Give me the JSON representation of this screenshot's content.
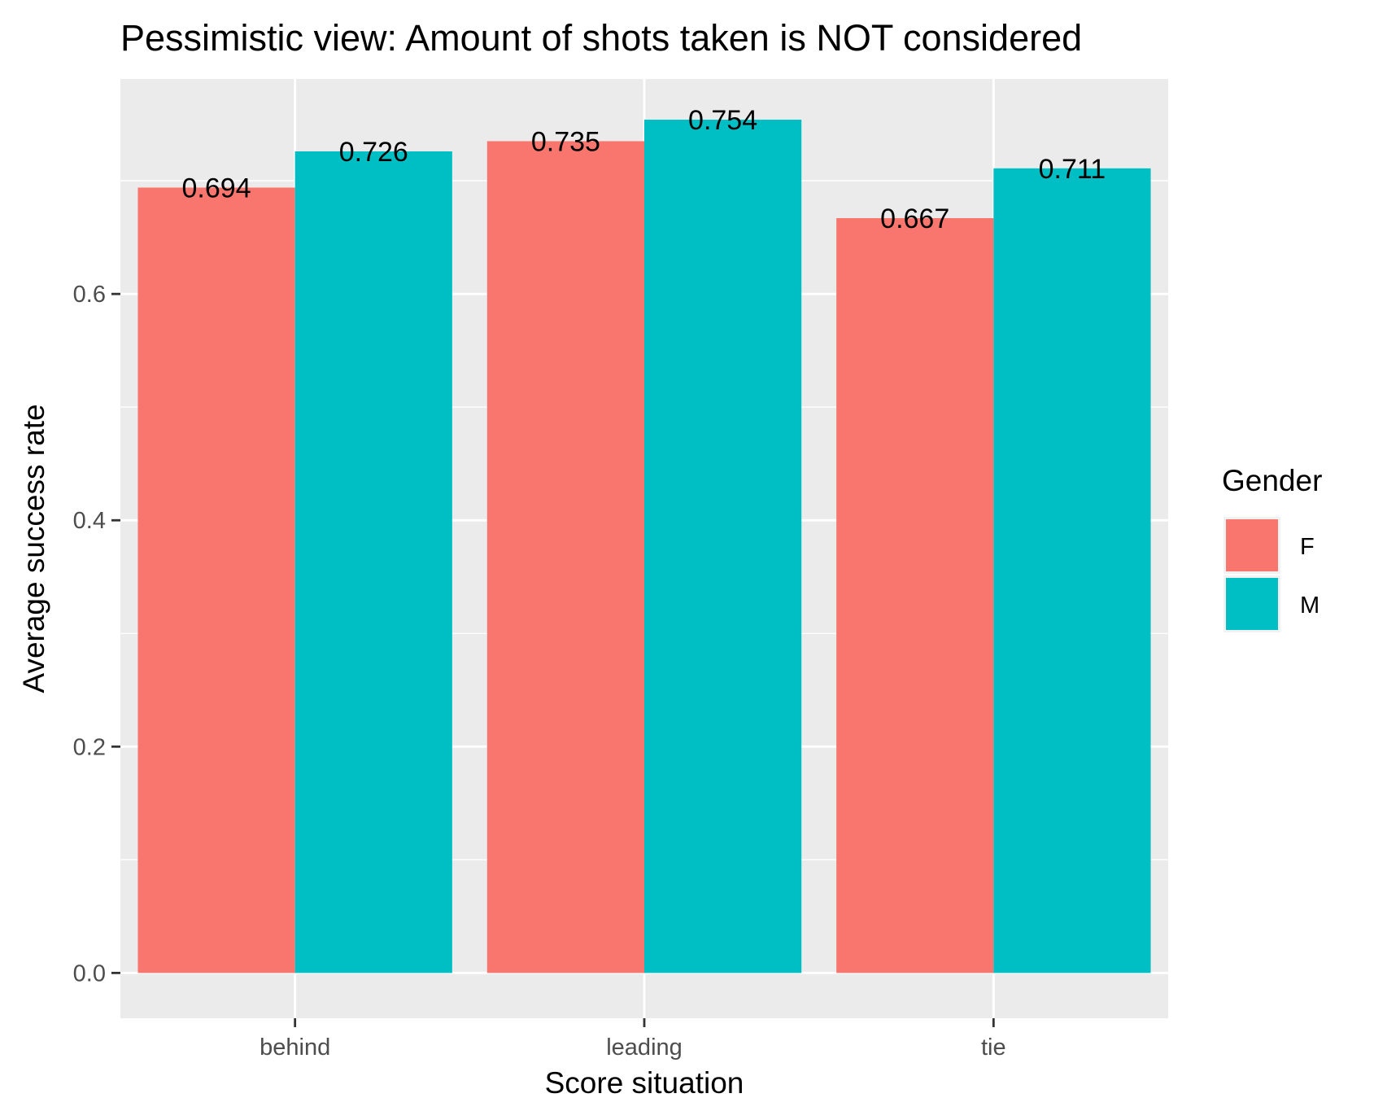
{
  "chart_data": {
    "type": "bar",
    "title": "Pessimistic view: Amount of shots taken is NOT considered",
    "xlabel": "Score situation",
    "ylabel": "Average success rate",
    "categories": [
      "behind",
      "leading",
      "tie"
    ],
    "series": [
      {
        "name": "F",
        "values": [
          0.694,
          0.735,
          0.667
        ],
        "labels": [
          "0.694",
          "0.735",
          "0.667"
        ],
        "color": "#F8766D"
      },
      {
        "name": "M",
        "values": [
          0.726,
          0.754,
          0.711
        ],
        "labels": [
          "0.726",
          "0.754",
          "0.711"
        ],
        "color": "#00BFC4"
      }
    ],
    "ylim": [
      -0.04,
      0.79
    ],
    "yticks": [
      0.0,
      0.2,
      0.4,
      0.6
    ],
    "ytick_labels": [
      "0.0",
      "0.2",
      "0.4",
      "0.6"
    ],
    "grid": true,
    "legend": {
      "title": "Gender",
      "position": "right"
    },
    "panel_color": "#EBEBEB",
    "grid_color": "#FFFFFF"
  }
}
